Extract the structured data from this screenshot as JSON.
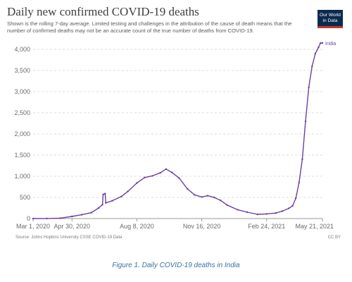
{
  "logo": {
    "line1": "Our World",
    "line2": "in Data"
  },
  "chart_data": {
    "type": "line",
    "title": "Daily new confirmed COVID-19 deaths",
    "subtitle": "Shown is the rolling 7-day average. Limited testing and challenges in the attribution of the cause of death means that the number of confirmed deaths may not be an accurate count of the true number of deaths from COVID-19.",
    "xlabel": "",
    "ylabel": "",
    "ylim": [
      0,
      4000
    ],
    "yticks": [
      0,
      500,
      1000,
      1500,
      2000,
      2500,
      3000,
      3500,
      4000
    ],
    "ytick_labels": [
      "0",
      "500",
      "1,000",
      "1,500",
      "2,000",
      "2,500",
      "3,000",
      "3,500",
      "4,000"
    ],
    "xlim": [
      "2020-03-01",
      "2021-05-21"
    ],
    "xticks": [
      "2020-03-01",
      "2020-04-30",
      "2020-08-08",
      "2020-11-16",
      "2021-02-24",
      "2021-05-21"
    ],
    "xtick_labels": [
      "Mar 1, 2020",
      "Apr 30, 2020",
      "Aug 8, 2020",
      "Nov 16, 2020",
      "Feb 24, 2021",
      "May 21, 2021"
    ],
    "grid": "horizontal dashed",
    "series": [
      {
        "name": "India",
        "color": "#6b3fa0",
        "x": [
          "2020-03-01",
          "2020-03-22",
          "2020-04-12",
          "2020-04-30",
          "2020-05-15",
          "2020-05-30",
          "2020-06-10",
          "2020-06-16",
          "2020-06-17",
          "2020-06-20",
          "2020-06-21",
          "2020-07-01",
          "2020-07-15",
          "2020-07-25",
          "2020-08-08",
          "2020-08-20",
          "2020-09-01",
          "2020-09-13",
          "2020-09-22",
          "2020-10-01",
          "2020-10-12",
          "2020-10-25",
          "2020-11-05",
          "2020-11-16",
          "2020-11-25",
          "2020-12-05",
          "2020-12-15",
          "2020-12-25",
          "2021-01-10",
          "2021-01-25",
          "2021-02-10",
          "2021-02-24",
          "2021-03-10",
          "2021-03-20",
          "2021-03-30",
          "2021-04-05",
          "2021-04-10",
          "2021-04-15",
          "2021-04-20",
          "2021-04-25",
          "2021-04-30",
          "2021-05-05",
          "2021-05-10",
          "2021-05-15",
          "2021-05-18",
          "2021-05-21"
        ],
        "y": [
          0,
          2,
          10,
          50,
          90,
          140,
          250,
          330,
          570,
          590,
          370,
          420,
          520,
          640,
          840,
          970,
          1010,
          1080,
          1170,
          1090,
          960,
          700,
          560,
          510,
          540,
          500,
          430,
          320,
          210,
          150,
          100,
          110,
          130,
          175,
          240,
          300,
          480,
          850,
          1400,
          2300,
          3100,
          3600,
          3900,
          4050,
          4150,
          4150
        ]
      }
    ]
  },
  "footer": {
    "source": "Source: Johns Hopkins University CSSE COVID-19 Data",
    "license": "CC BY"
  },
  "caption": "Figure 1. Daily COVID-19 deaths in India"
}
